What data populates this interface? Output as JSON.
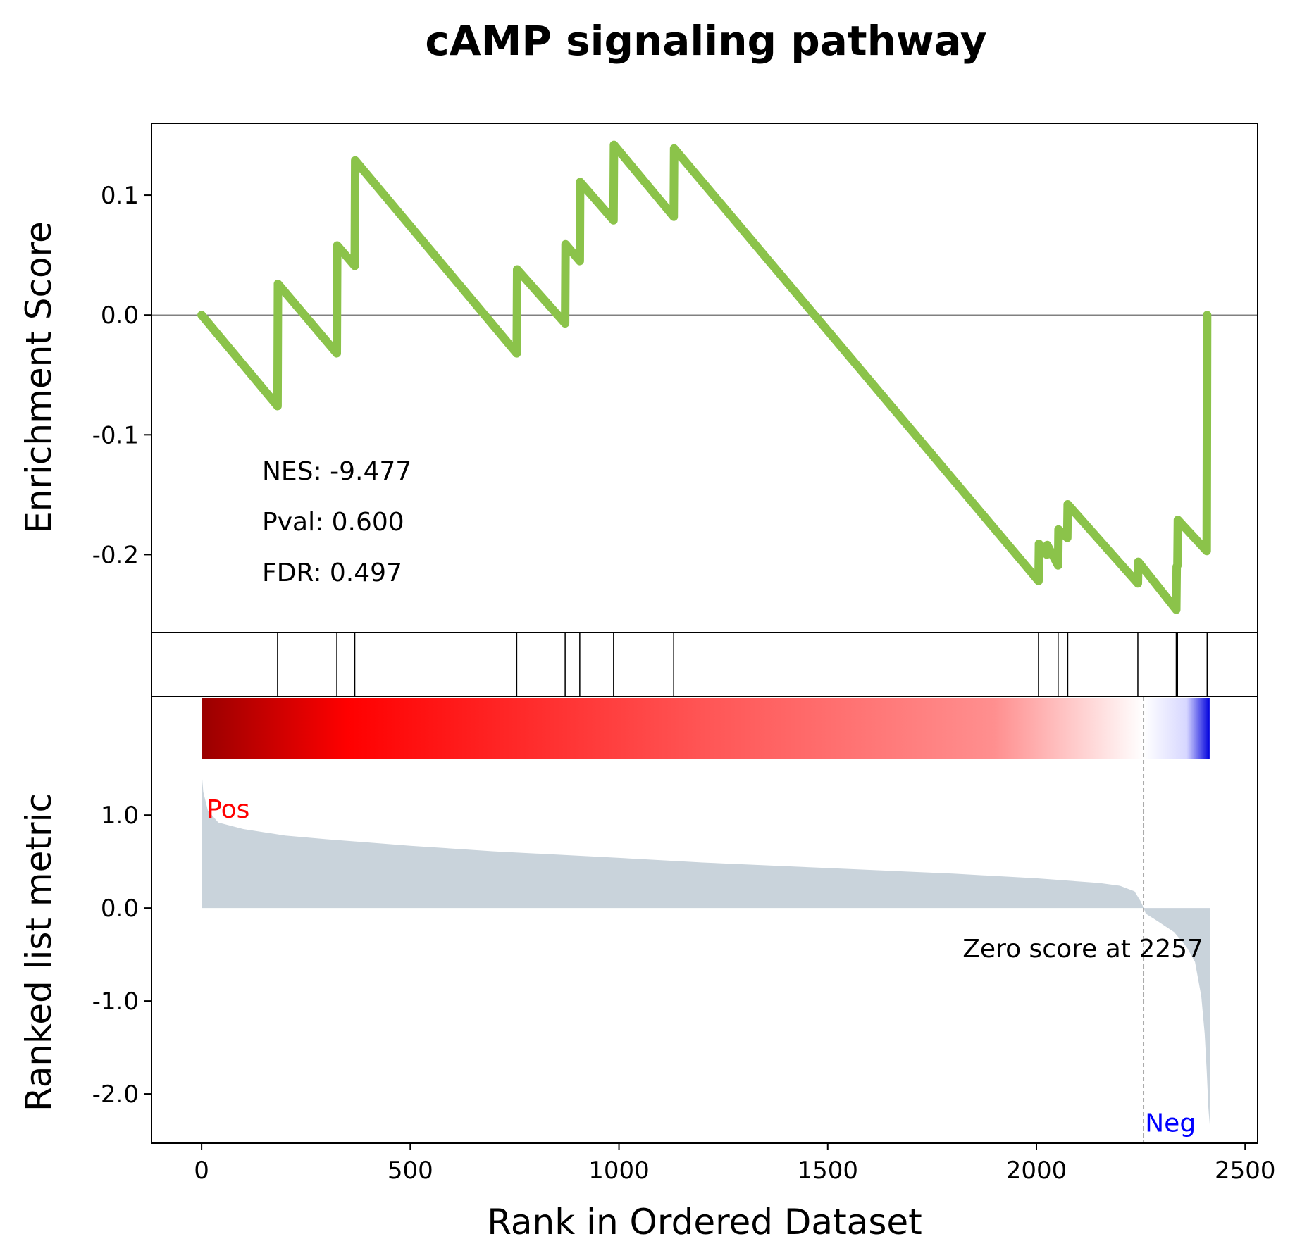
{
  "chart_data": {
    "type": "line",
    "title": "cAMP signaling pathway",
    "xlabel": "Rank in Ordered Dataset",
    "xlim": [
      -120,
      2530
    ],
    "x_ticks": [
      {
        "value": 0,
        "label": "0"
      },
      {
        "value": 500,
        "label": "500"
      },
      {
        "value": 1000,
        "label": "1000"
      },
      {
        "value": 1500,
        "label": "1500"
      },
      {
        "value": 2000,
        "label": "2000"
      },
      {
        "value": 2500,
        "label": "2500"
      }
    ],
    "enrichment": {
      "ylabel": "Enrichment Score",
      "ylim": [
        -0.265,
        0.16
      ],
      "line_color": "#8bc34a",
      "zero_line": true,
      "y_ticks": [
        {
          "value": 0.1,
          "label": "0.1"
        },
        {
          "value": 0.0,
          "label": "0.0"
        },
        {
          "value": -0.1,
          "label": "-0.1"
        },
        {
          "value": -0.2,
          "label": "-0.2"
        }
      ],
      "points": [
        [
          0,
          0.0
        ],
        [
          182,
          -0.076
        ],
        [
          183,
          0.026
        ],
        [
          324,
          -0.032
        ],
        [
          325,
          0.058
        ],
        [
          367,
          0.041
        ],
        [
          368,
          0.129
        ],
        [
          755,
          -0.032
        ],
        [
          756,
          0.038
        ],
        [
          871,
          -0.007
        ],
        [
          872,
          0.059
        ],
        [
          906,
          0.045
        ],
        [
          907,
          0.111
        ],
        [
          987,
          0.079
        ],
        [
          988,
          0.142
        ],
        [
          1131,
          0.082
        ],
        [
          1132,
          0.139
        ],
        [
          2005,
          -0.222
        ],
        [
          2006,
          -0.191
        ],
        [
          2025,
          -0.2
        ],
        [
          2026,
          -0.192
        ],
        [
          2052,
          -0.209
        ],
        [
          2053,
          -0.179
        ],
        [
          2074,
          -0.186
        ],
        [
          2075,
          -0.158
        ],
        [
          2243,
          -0.224
        ],
        [
          2244,
          -0.206
        ],
        [
          2335,
          -0.246
        ],
        [
          2336,
          -0.21
        ],
        [
          2338,
          -0.209
        ],
        [
          2339,
          -0.171
        ],
        [
          2408,
          -0.197
        ],
        [
          2409,
          0.0
        ]
      ]
    },
    "stats": {
      "nes": "NES: -9.477",
      "pval": "Pval: 0.600",
      "fdr": "FDR: 0.497"
    },
    "hits": [
      182,
      324,
      367,
      755,
      871,
      906,
      987,
      1131,
      2005,
      2052,
      2075,
      2243,
      2335,
      2338,
      2409
    ],
    "heatmap": {
      "stops": [
        {
          "rank": 0,
          "color": "#990000"
        },
        {
          "rank": 350,
          "color": "#ff0000"
        },
        {
          "rank": 1200,
          "color": "#ff5555"
        },
        {
          "rank": 1900,
          "color": "#ff8f8f"
        },
        {
          "rank": 2257,
          "color": "#ffffff"
        },
        {
          "rank": 2360,
          "color": "#d7d7ff"
        },
        {
          "rank": 2415,
          "color": "#0000dd"
        }
      ]
    },
    "ranked_metric": {
      "ylabel": "Ranked list metric",
      "ylim": [
        -2.53,
        1.6
      ],
      "fill_color": "#c9d3db",
      "zero_score_rank": 2257,
      "zero_score_label": "Zero score at 2257",
      "pos_label": "Pos",
      "neg_label": "Neg",
      "pos_color": "#ff0000",
      "neg_color": "#0000ff",
      "y_ticks": [
        {
          "value": 1.0,
          "label": "1.0"
        },
        {
          "value": 0.0,
          "label": "0.0"
        },
        {
          "value": -1.0,
          "label": "-1.0"
        },
        {
          "value": -2.0,
          "label": "-2.0"
        }
      ],
      "curve": [
        [
          0,
          1.47
        ],
        [
          4,
          1.25
        ],
        [
          15,
          1.05
        ],
        [
          40,
          0.92
        ],
        [
          100,
          0.85
        ],
        [
          200,
          0.78
        ],
        [
          300,
          0.74
        ],
        [
          500,
          0.67
        ],
        [
          700,
          0.61
        ],
        [
          1000,
          0.54
        ],
        [
          1200,
          0.49
        ],
        [
          1500,
          0.43
        ],
        [
          1800,
          0.37
        ],
        [
          2000,
          0.32
        ],
        [
          2150,
          0.27
        ],
        [
          2200,
          0.24
        ],
        [
          2235,
          0.18
        ],
        [
          2250,
          0.07
        ],
        [
          2257,
          0.0
        ],
        [
          2262,
          -0.06
        ],
        [
          2290,
          -0.14
        ],
        [
          2330,
          -0.26
        ],
        [
          2360,
          -0.42
        ],
        [
          2380,
          -0.58
        ],
        [
          2395,
          -0.95
        ],
        [
          2403,
          -1.35
        ],
        [
          2408,
          -1.75
        ],
        [
          2412,
          -2.15
        ],
        [
          2415,
          -2.33
        ],
        [
          2416,
          0.0
        ]
      ]
    }
  }
}
